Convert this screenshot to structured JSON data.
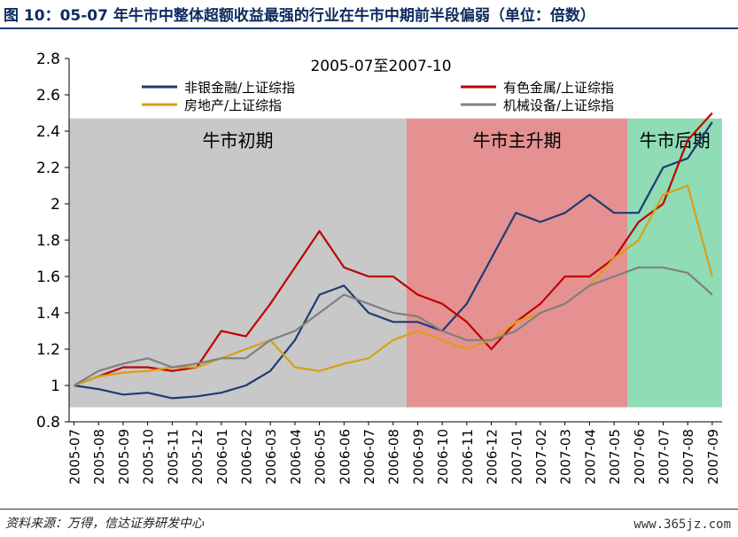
{
  "figure": {
    "title": "图 10：05-07 年牛市中整体超额收益最强的行业在牛市中期前半段偏弱（单位：倍数）",
    "source": "资料来源：万得，信达证券研发中心",
    "watermark": "www.365jz.com"
  },
  "chart_data": {
    "type": "line",
    "title": "2005-07至2007-10",
    "xlabel": "",
    "ylabel": "",
    "ylim": [
      0.8,
      2.8
    ],
    "yticks": [
      "2.8",
      "2.6",
      "2.4",
      "2.2",
      "2",
      "1.8",
      "1.6",
      "1.4",
      "1.2",
      "1",
      "0.8"
    ],
    "categories": [
      "2005-07",
      "2005-08",
      "2005-09",
      "2005-10",
      "2005-11",
      "2005-12",
      "2006-01",
      "2006-02",
      "2006-03",
      "2006-04",
      "2006-05",
      "2006-06",
      "2006-07",
      "2006-08",
      "2006-09",
      "2006-10",
      "2006-11",
      "2006-12",
      "2007-01",
      "2007-02",
      "2007-03",
      "2007-04",
      "2007-05",
      "2007-06",
      "2007-07",
      "2007-08",
      "2007-09"
    ],
    "legend_position": "top",
    "phases": [
      {
        "label": "牛市初期",
        "from": "2005-07",
        "to": "2006-08",
        "color": "#c8c8c8"
      },
      {
        "label": "牛市主升期",
        "from": "2006-09",
        "to": "2007-05",
        "color": "#e59191"
      },
      {
        "label": "牛市后期",
        "from": "2007-06",
        "to": "2007-10",
        "color": "#8fdcb5"
      }
    ],
    "series": [
      {
        "name": "非银金融/上证综指",
        "color": "#1f3b73",
        "values": [
          1.0,
          0.98,
          0.95,
          0.96,
          0.93,
          0.94,
          0.96,
          1.0,
          1.08,
          1.25,
          1.5,
          1.55,
          1.4,
          1.35,
          1.35,
          1.3,
          1.45,
          1.7,
          1.95,
          1.9,
          1.95,
          2.05,
          1.95,
          1.95,
          2.2,
          2.25,
          2.45
        ]
      },
      {
        "name": "有色金属/上证综指",
        "color": "#c00000",
        "values": [
          1.0,
          1.05,
          1.1,
          1.1,
          1.08,
          1.1,
          1.3,
          1.27,
          1.45,
          1.65,
          1.85,
          1.65,
          1.6,
          1.6,
          1.5,
          1.45,
          1.35,
          1.2,
          1.35,
          1.45,
          1.6,
          1.6,
          1.7,
          1.9,
          2.0,
          2.35,
          2.5
        ]
      },
      {
        "name": "房地产/上证综指",
        "color": "#d9a014",
        "values": [
          1.0,
          1.05,
          1.07,
          1.08,
          1.1,
          1.1,
          1.15,
          1.2,
          1.25,
          1.1,
          1.08,
          1.12,
          1.15,
          1.25,
          1.3,
          1.25,
          1.2,
          1.25,
          1.35,
          1.4,
          1.45,
          1.55,
          1.7,
          1.8,
          2.05,
          2.1,
          1.6
        ]
      },
      {
        "name": "机械设备/上证综指",
        "color": "#808080",
        "values": [
          1.0,
          1.08,
          1.12,
          1.15,
          1.1,
          1.12,
          1.15,
          1.15,
          1.25,
          1.3,
          1.4,
          1.5,
          1.45,
          1.4,
          1.38,
          1.3,
          1.25,
          1.25,
          1.3,
          1.4,
          1.45,
          1.55,
          1.6,
          1.65,
          1.65,
          1.62,
          1.5
        ]
      }
    ]
  }
}
